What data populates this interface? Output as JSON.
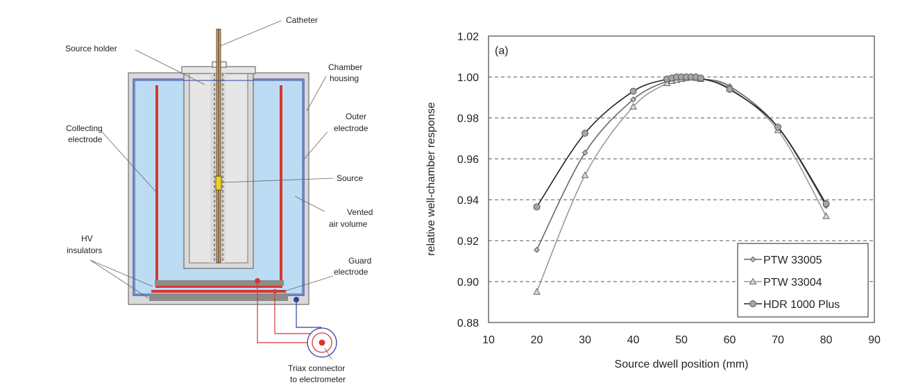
{
  "diagram": {
    "labels": {
      "catheter": "Catheter",
      "source_holder": "Source holder",
      "chamber_housing_1": "Chamber",
      "chamber_housing_2": "housing",
      "outer_electrode_1": "Outer",
      "outer_electrode_2": "electrode",
      "collecting_electrode_1": "Collecting",
      "collecting_electrode_2": "electrode",
      "source": "Source",
      "vented_air_1": "Vented",
      "vented_air_2": "air volume",
      "hv_insulators_1": "HV",
      "hv_insulators_2": "insulators",
      "guard_electrode_1": "Guard",
      "guard_electrode_2": "electrode",
      "triax_1": "Triax connector",
      "triax_2": "to electrometer"
    },
    "colors": {
      "housing": "#d9d9d9",
      "air": "#bcdcf4",
      "electrode": "#d6382f",
      "insulator": "#8c8c8c",
      "outer_electrode": "#2f3f9e",
      "source": "#f2d21b"
    }
  },
  "chart_data": {
    "type": "line",
    "annotation": "(a)",
    "xlabel": "Source dwell position (mm)",
    "ylabel": "relative well-chamber response",
    "xlim": [
      10,
      90
    ],
    "ylim": [
      0.88,
      1.02
    ],
    "xticks": [
      10,
      20,
      30,
      40,
      50,
      60,
      70,
      80,
      90
    ],
    "yticks": [
      "0.88",
      "0.90",
      "0.92",
      "0.94",
      "0.96",
      "0.98",
      "1.00",
      "1.02"
    ],
    "grid": "horizontal dashed",
    "legend_position": "bottom-right",
    "series": [
      {
        "name": "PTW 33005",
        "marker": "diamond",
        "color": "#666666",
        "x": [
          20,
          30,
          40,
          47,
          48,
          49,
          50,
          51,
          52,
          53,
          54,
          60,
          70,
          80
        ],
        "y": [
          0.9155,
          0.963,
          0.989,
          0.998,
          0.9985,
          0.999,
          0.9995,
          1.0,
          1.0,
          0.9995,
          0.999,
          0.9955,
          0.9755,
          0.937
        ]
      },
      {
        "name": "PTW 33004",
        "marker": "triangle",
        "color": "#999999",
        "x": [
          20,
          30,
          40,
          47,
          48,
          49,
          50,
          51,
          52,
          53,
          54,
          60,
          70,
          80
        ],
        "y": [
          0.895,
          0.952,
          0.9855,
          0.997,
          0.998,
          0.9985,
          0.999,
          0.9995,
          1.0,
          0.9995,
          0.999,
          0.9945,
          0.974,
          0.932
        ]
      },
      {
        "name": "HDR 1000 Plus",
        "marker": "circle",
        "color": "#222222",
        "x": [
          20,
          30,
          40,
          47,
          48,
          49,
          50,
          51,
          52,
          53,
          54,
          60,
          70,
          80
        ],
        "y": [
          0.9365,
          0.9725,
          0.993,
          0.999,
          0.9995,
          1.0,
          1.0,
          1.0,
          1.0,
          1.0,
          0.9995,
          0.994,
          0.9755,
          0.938
        ]
      }
    ]
  }
}
